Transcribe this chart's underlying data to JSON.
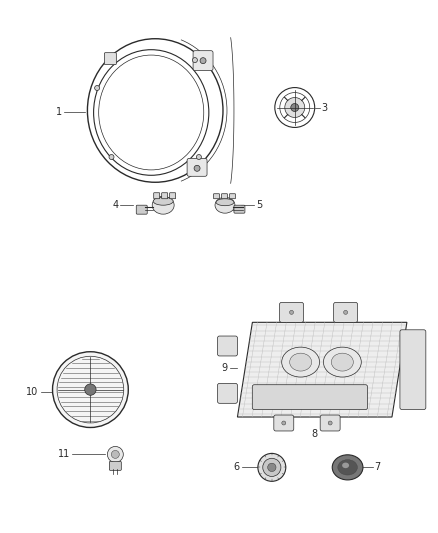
{
  "background_color": "#ffffff",
  "fig_width": 4.38,
  "fig_height": 5.33,
  "dpi": 100,
  "line_color": "#2a2a2a",
  "label_color": "#2a2a2a",
  "label_fontsize": 7.0
}
